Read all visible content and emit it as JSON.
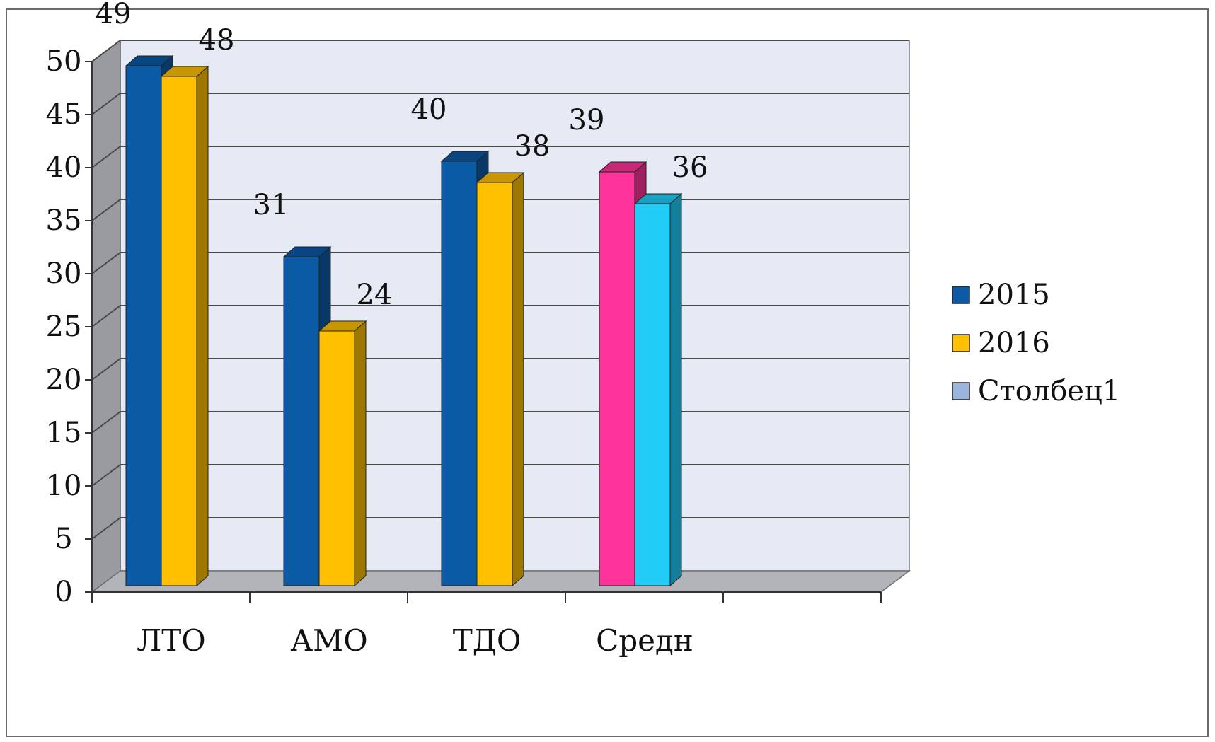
{
  "colors": {
    "series_2015": "#0b5aa5",
    "series_2016": "#ffc000",
    "series_stolbets1": "#9bb5dd",
    "highlight_2015": "#ff3399",
    "highlight_2016": "#21cdf7",
    "wall": "#e6eaf5",
    "side_wall": "#9a9ba0",
    "floor": "#b3b4ba"
  },
  "chart_data": {
    "type": "bar",
    "categories": [
      "ЛТО",
      "АМО",
      "ТДО",
      "Средн"
    ],
    "series": [
      {
        "name": "2015",
        "values": [
          49,
          31,
          40,
          39
        ],
        "labels": [
          "49",
          "31",
          "40",
          "39"
        ]
      },
      {
        "name": "2016",
        "values": [
          48,
          24,
          38,
          36
        ],
        "labels": [
          "48",
          "24",
          "38",
          "36"
        ]
      },
      {
        "name": "Столбец1",
        "values": [
          null,
          null,
          null,
          null
        ],
        "labels": [
          "",
          "",
          "",
          ""
        ]
      }
    ],
    "y_ticks": [
      "0",
      "5",
      "10",
      "15",
      "20",
      "25",
      "30",
      "35",
      "40",
      "45",
      "50"
    ],
    "ylim": [
      0,
      50
    ],
    "grid": true,
    "three_d": true,
    "legend_position": "right",
    "title": "",
    "xlabel": "",
    "ylabel": ""
  }
}
